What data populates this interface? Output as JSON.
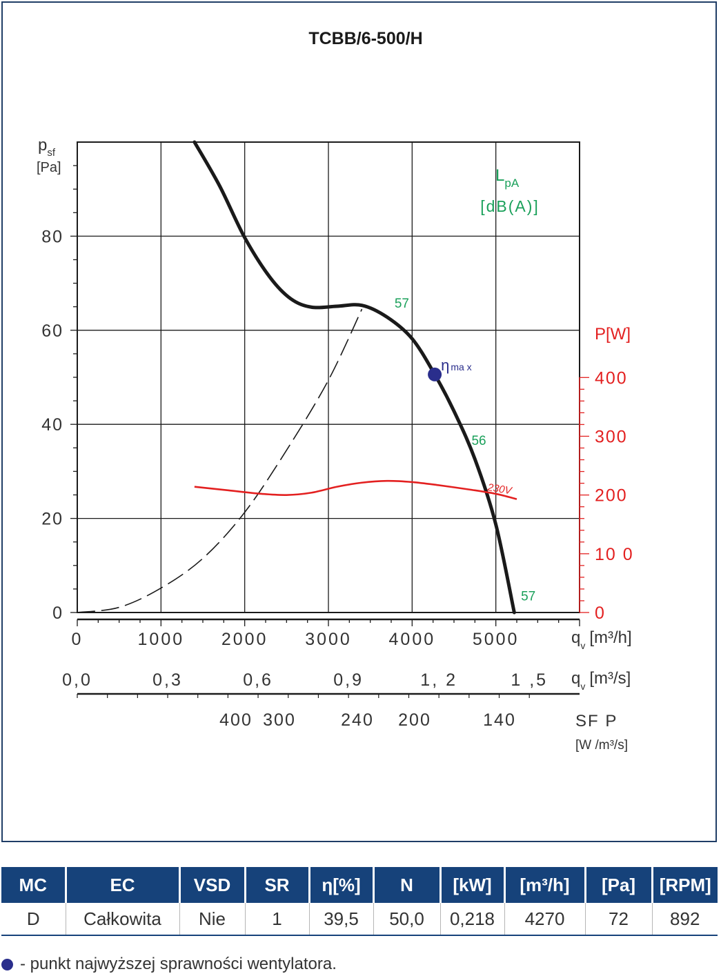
{
  "chart_data": {
    "type": "line",
    "title": "TCBB/6-500/H",
    "y_label": {
      "symbol": "p",
      "sub": "sf",
      "unit": "[Pa]"
    },
    "y_ticks": [
      "0",
      "20",
      "40",
      "60",
      "80"
    ],
    "ylim": [
      0,
      100
    ],
    "x_axis_m3h": {
      "symbol": "q",
      "sub": "v",
      "unit": "[m³/h]",
      "ticks": [
        "0",
        "1000",
        "2000",
        "3000",
        "4000",
        "5000"
      ],
      "xlim": [
        0,
        6000
      ]
    },
    "x_axis_m3s": {
      "symbol": "q",
      "sub": "v",
      "unit": "[m³/s]",
      "ticks": [
        "0,0",
        "0,3",
        "0,6",
        "0,9",
        "1, 2",
        "1 ,5"
      ]
    },
    "sfp_axis": {
      "label": "SF P",
      "unit": "[W /m³/s]",
      "ticks": [
        "400",
        "300",
        "240",
        "200",
        "140"
      ]
    },
    "power_axis": {
      "label": "P[W]",
      "ticks": [
        "0",
        "10 0",
        "200",
        "300",
        "400"
      ],
      "lim": [
        0,
        400
      ]
    },
    "lpa_label": {
      "symbol": "L",
      "sub": "pA",
      "unit": "[dB(A)]"
    },
    "grid": true,
    "series": [
      {
        "role": "pressure",
        "color": "#1a1a1a",
        "points": [
          [
            1400,
            100
          ],
          [
            1700,
            90.7
          ],
          [
            2000,
            79.7
          ],
          [
            2300,
            71.3
          ],
          [
            2550,
            66.7
          ],
          [
            2800,
            64.9
          ],
          [
            3100,
            65.1
          ],
          [
            3400,
            65.3
          ],
          [
            3700,
            62.8
          ],
          [
            4000,
            58.2
          ],
          [
            4270,
            50.6
          ],
          [
            4500,
            42.8
          ],
          [
            4750,
            32.6
          ],
          [
            5000,
            18.7
          ],
          [
            5220,
            0
          ]
        ]
      },
      {
        "role": "system_curve",
        "color": "#1a1a1a",
        "points": [
          [
            0,
            0
          ],
          [
            500,
            1.1
          ],
          [
            1000,
            5.2
          ],
          [
            1500,
            11.5
          ],
          [
            2000,
            21.3
          ],
          [
            2500,
            34.5
          ],
          [
            3000,
            49.4
          ],
          [
            3400,
            64.5
          ]
        ]
      },
      {
        "role": "power",
        "name": "230V",
        "color": "#e32020",
        "points": [
          [
            1400,
            214
          ],
          [
            1800,
            208
          ],
          [
            2200,
            202
          ],
          [
            2500,
            200
          ],
          [
            2800,
            204
          ],
          [
            3100,
            214
          ],
          [
            3400,
            221
          ],
          [
            3700,
            224
          ],
          [
            4000,
            222
          ],
          [
            4300,
            217
          ],
          [
            4700,
            209
          ],
          [
            5000,
            202
          ],
          [
            5250,
            193
          ]
        ]
      }
    ],
    "efficiency_point": {
      "x": 4270,
      "y": 50.6,
      "label": "η",
      "label_sub": "ma x",
      "color": "#2a2e8c"
    },
    "sound_labels": [
      {
        "text": "57",
        "x": 3790,
        "y": 64.8
      },
      {
        "text": "56",
        "x": 4710,
        "y": 35.6
      },
      {
        "text": "57",
        "x": 5300,
        "y": 2.6
      }
    ]
  },
  "table": {
    "headers": [
      "MC",
      "EC",
      "VSD",
      "SR",
      "η[%]",
      "N",
      "[kW]",
      "[m³/h]",
      "[Pa]",
      "[RPM]"
    ],
    "row": [
      "D",
      "Całkowita",
      "Nie",
      "1",
      "39,5",
      "50,0",
      "0,218",
      "4270",
      "72",
      "892"
    ]
  },
  "footnote": "- punkt najwyższej sprawności wentylatora."
}
